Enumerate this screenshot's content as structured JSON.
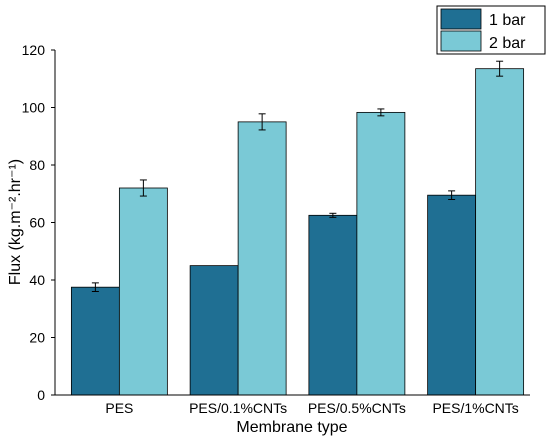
{
  "colors": {
    "series_1": "#1f6f93",
    "series_2": "#7ac9d6",
    "axis": "#000000",
    "error_bar": "#000000"
  },
  "chart_data": {
    "type": "bar",
    "title": "",
    "xlabel": "Membrane type",
    "ylabel": "Flux (kg.m⁻².hr⁻¹)",
    "categories": [
      "PES",
      "PES/0.1%CNTs",
      "PES/0.5%CNTs",
      "PES/1%CNTs"
    ],
    "series": [
      {
        "name": "1 bar",
        "values": [
          37.5,
          45.0,
          62.5,
          69.5
        ],
        "errors": [
          1.5,
          0,
          0.7,
          1.5
        ]
      },
      {
        "name": "2 bar",
        "values": [
          72.0,
          95.0,
          98.3,
          113.5
        ],
        "errors": [
          2.8,
          2.8,
          1.2,
          2.6
        ]
      }
    ],
    "ylim": [
      0,
      120
    ],
    "yticks": [
      "0",
      "20",
      "40",
      "60",
      "80",
      "100",
      "120"
    ],
    "grid": false,
    "legend_position": "top-right"
  }
}
